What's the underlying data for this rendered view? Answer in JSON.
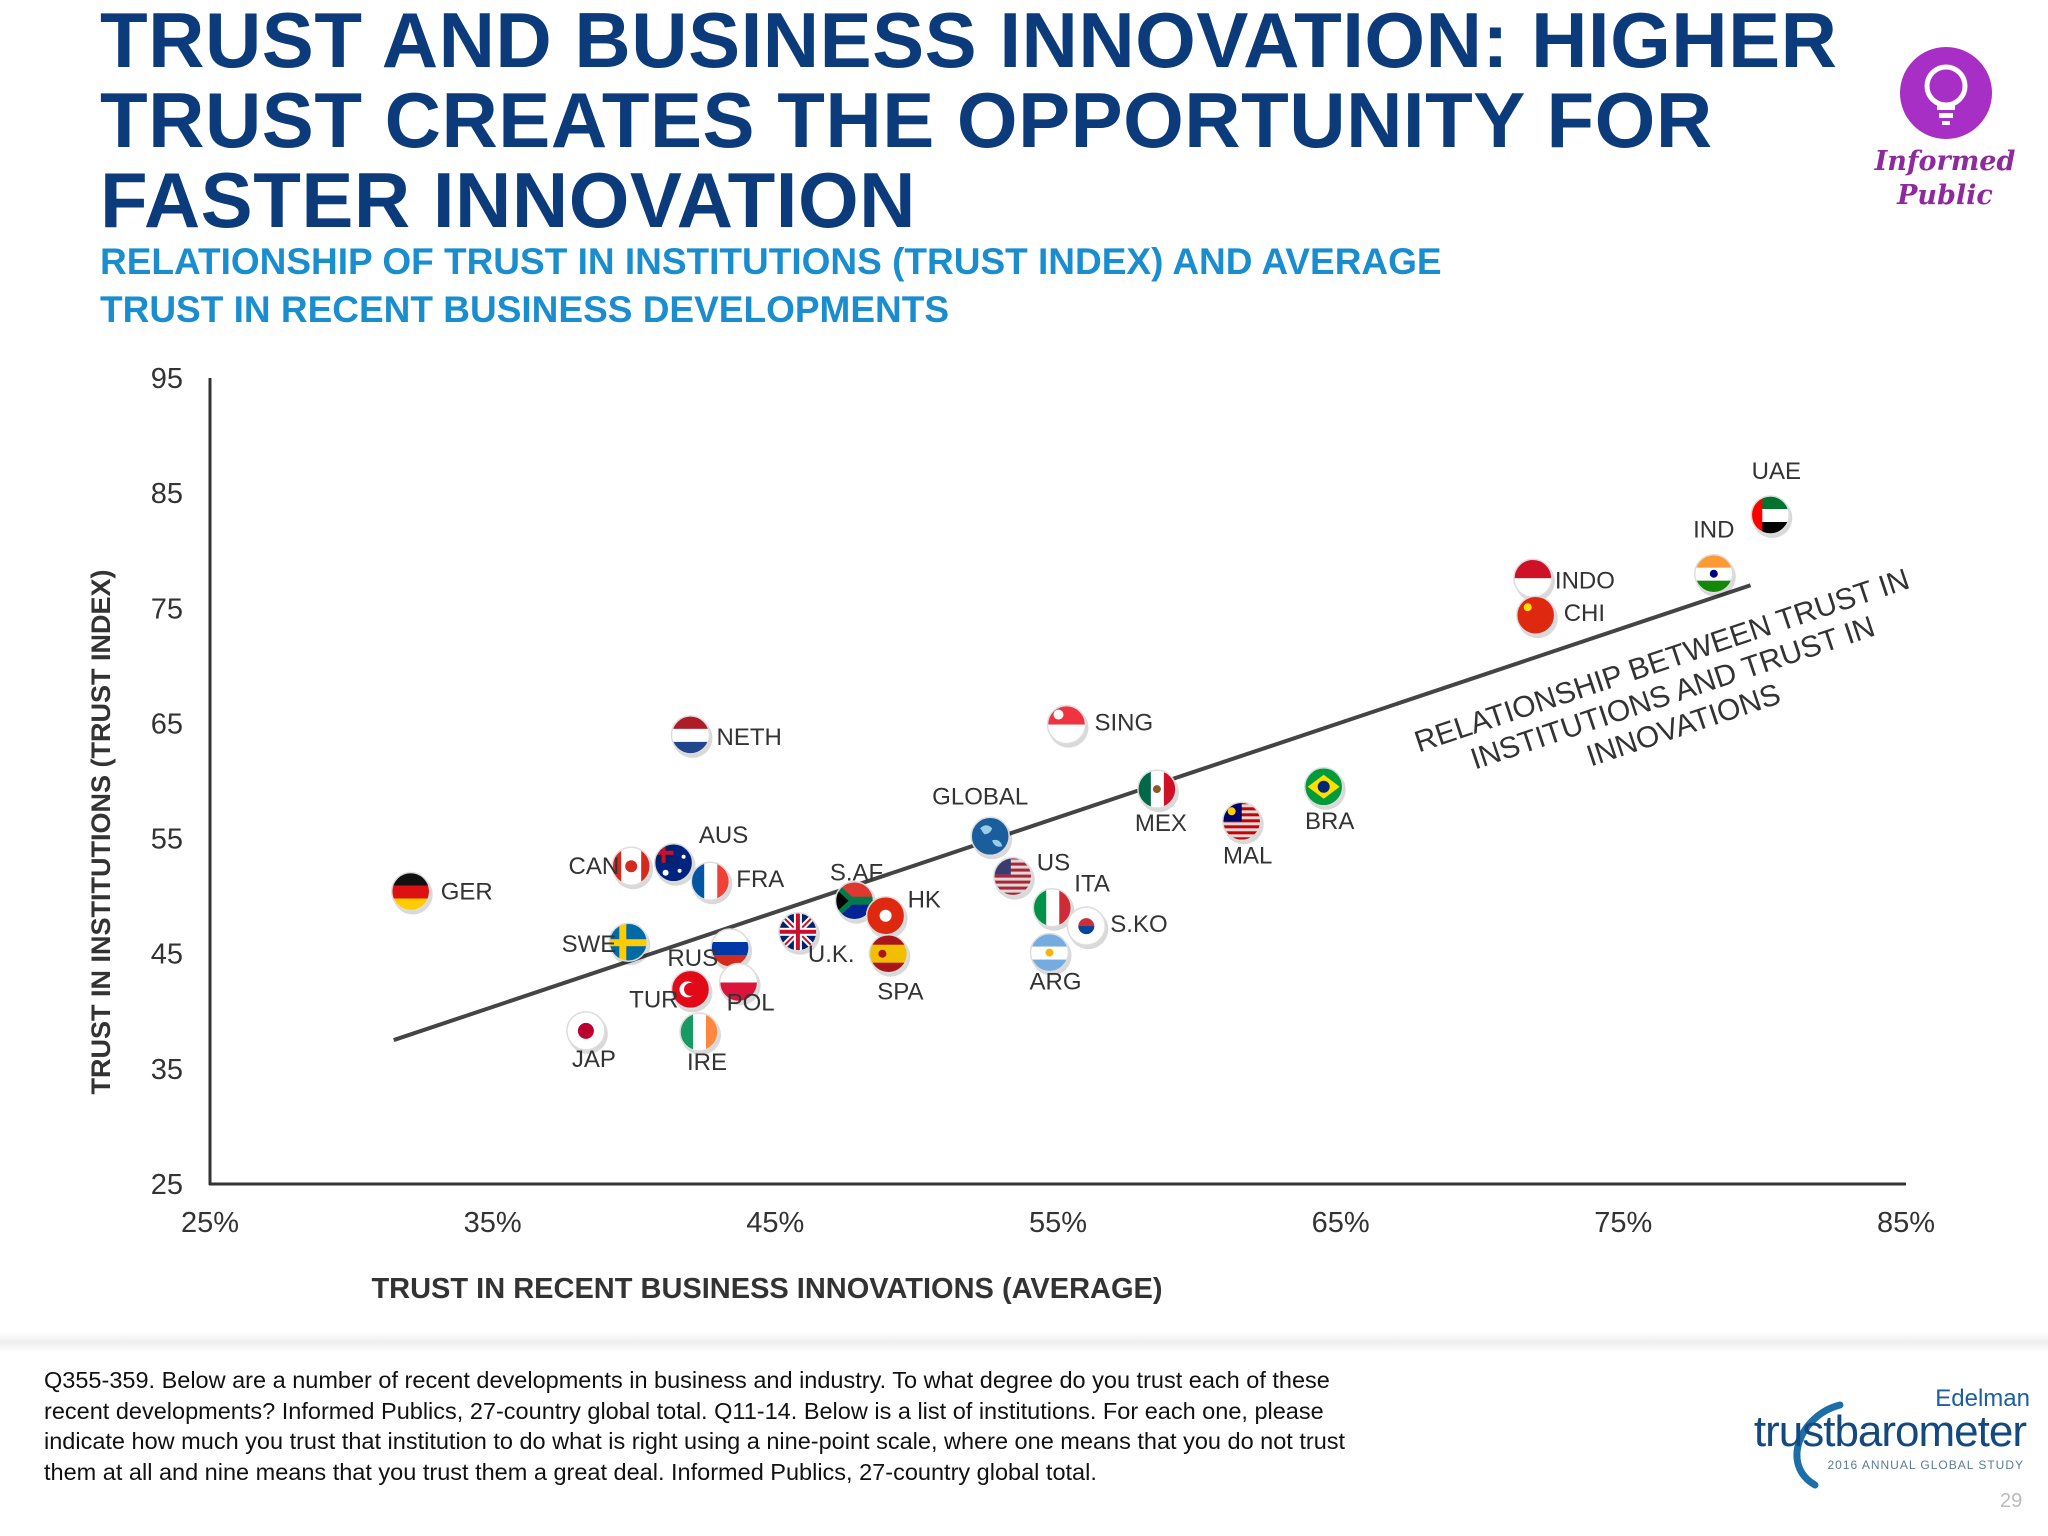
{
  "header": {
    "title_bold": "TRUST AND BUSINESS INNOVATION:",
    "title_rest": " HIGHER TRUST CREATES THE OPPORTUNITY FOR FASTER INNOVATION",
    "subtitle_line1": "RELATIONSHIP OF TRUST IN INSTITUTIONS (TRUST INDEX) AND AVERAGE",
    "subtitle_line2": "TRUST IN RECENT BUSINESS DEVELOPMENTS"
  },
  "badge": {
    "icon": "lightbulb-icon",
    "line1": "Informed",
    "line2": "Public",
    "color": "#a72fc6"
  },
  "chart_data": {
    "type": "scatter",
    "xlabel": "TRUST IN RECENT BUSINESS INNOVATIONS (AVERAGE)",
    "ylabel": "TRUST IN INSTITUTIONS (TRUST INDEX)",
    "xlim": [
      25,
      85
    ],
    "ylim": [
      25,
      95
    ],
    "xticks": [
      "25%",
      "35%",
      "45%",
      "55%",
      "65%",
      "75%",
      "85%"
    ],
    "yticks": [
      "95",
      "85",
      "75",
      "65",
      "55",
      "45",
      "35",
      "25"
    ],
    "grid": false,
    "trendline": {
      "from": [
        31.5,
        37.5
      ],
      "to": [
        79.5,
        77.0
      ],
      "label_line1": "RELATIONSHIP BETWEEN TRUST IN",
      "label_line2": "INSTITUTIONS AND TRUST IN",
      "label_line3": "INNOVATIONS"
    },
    "points": [
      {
        "label": "GER",
        "x": 32.1,
        "y": 50.4,
        "flag": "germany"
      },
      {
        "label": "CAN",
        "x": 39.9,
        "y": 52.6,
        "flag": "canada"
      },
      {
        "label": "AUS",
        "x": 41.4,
        "y": 52.9,
        "flag": "australia"
      },
      {
        "label": "FRA",
        "x": 42.7,
        "y": 51.3,
        "flag": "france"
      },
      {
        "label": "NETH",
        "x": 42.0,
        "y": 64.0,
        "flag": "netherlands"
      },
      {
        "label": "SWE",
        "x": 39.8,
        "y": 46.0,
        "flag": "sweden"
      },
      {
        "label": "RUS",
        "x": 43.4,
        "y": 45.5,
        "flag": "russia"
      },
      {
        "label": "U.K.",
        "x": 45.8,
        "y": 46.9,
        "flag": "uk"
      },
      {
        "label": "TUR",
        "x": 42.0,
        "y": 41.9,
        "flag": "turkey"
      },
      {
        "label": "POL",
        "x": 43.7,
        "y": 42.5,
        "flag": "poland"
      },
      {
        "label": "JAP",
        "x": 38.3,
        "y": 38.3,
        "flag": "japan"
      },
      {
        "label": "IRE",
        "x": 42.3,
        "y": 38.2,
        "flag": "ireland"
      },
      {
        "label": "S.AF",
        "x": 47.8,
        "y": 49.6,
        "flag": "south_africa"
      },
      {
        "label": "HK",
        "x": 48.9,
        "y": 48.3,
        "flag": "hongkong"
      },
      {
        "label": "SPA",
        "x": 49.0,
        "y": 45.0,
        "flag": "spain"
      },
      {
        "label": "GLOBAL",
        "x": 52.6,
        "y": 55.2,
        "flag": "globe"
      },
      {
        "label": "US",
        "x": 53.4,
        "y": 51.7,
        "flag": "usa"
      },
      {
        "label": "ITA",
        "x": 54.8,
        "y": 49.0,
        "flag": "italy"
      },
      {
        "label": "S.KO",
        "x": 56.0,
        "y": 47.4,
        "flag": "southkorea"
      },
      {
        "label": "ARG",
        "x": 54.7,
        "y": 45.1,
        "flag": "argentina"
      },
      {
        "label": "SING",
        "x": 55.3,
        "y": 64.9,
        "flag": "singapore"
      },
      {
        "label": "MEX",
        "x": 58.5,
        "y": 59.3,
        "flag": "mexico"
      },
      {
        "label": "MAL",
        "x": 61.5,
        "y": 56.5,
        "flag": "malaysia"
      },
      {
        "label": "BRA",
        "x": 64.4,
        "y": 59.5,
        "flag": "brazil"
      },
      {
        "label": "INDO",
        "x": 71.8,
        "y": 77.6,
        "flag": "indonesia"
      },
      {
        "label": "CHI",
        "x": 71.9,
        "y": 74.4,
        "flag": "china"
      },
      {
        "label": "IND",
        "x": 78.2,
        "y": 78.0,
        "flag": "india"
      },
      {
        "label": "UAE",
        "x": 80.2,
        "y": 83.1,
        "flag": "uae"
      }
    ]
  },
  "footnote": "Q355-359. Below are a number of recent developments in business and industry. To what degree do you trust each of these recent developments? Informed Publics, 27-country global total. Q11-14. Below is a list of institutions. For each one, please indicate how much you trust that institution to do what is right using a nine-point scale, where one means that you do not trust them at all and nine means that you trust them a great deal. Informed Publics, 27-country global total.",
  "logo": {
    "brand": "Edelman",
    "product": "trustbarometer",
    "tagline": "2016 ANNUAL GLOBAL STUDY"
  },
  "page_number": "29"
}
